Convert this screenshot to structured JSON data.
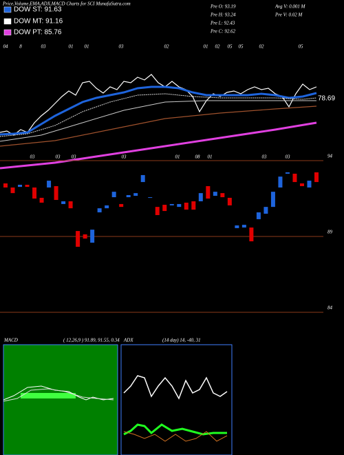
{
  "header": {
    "title": "Price,Volume,EMA,ADX,MACD Charts for SCI MunafaSutra.com"
  },
  "legend": [
    {
      "label": "DOW ST: 91.63",
      "color": "#1e64dc"
    },
    {
      "label": "DOW MT: 91.16",
      "color": "#ffffff"
    },
    {
      "label": "DOW PT: 85.76",
      "color": "#e040e0"
    }
  ],
  "info": [
    "Pre O: 93.19",
    "Pre H: 93.24",
    "Pre L: 92.43",
    "Pre C: 92.62",
    "Avg V: 0.001 M",
    "Pre V: 0.02 M"
  ],
  "ema_panel": {
    "last_label": "78.69",
    "top_dates": [
      "04",
      "8",
      "03",
      "01",
      "01",
      "03",
      "02",
      "01",
      "02",
      "05",
      "05",
      "02",
      "05"
    ],
    "bottom_dates": [
      "03",
      "03",
      "03",
      "03",
      "01",
      "08",
      "01",
      "03",
      "03"
    ]
  },
  "chart_data": {
    "type": "candlestick",
    "open": [
      92.5,
      92.23,
      92.27,
      92.41,
      92.23,
      91.55,
      92.23,
      92.32,
      91.14,
      91.32,
      89.36,
      89.14,
      88.59,
      90.59,
      90.86,
      91.59,
      91.14,
      91.59,
      91.68,
      92.59,
      91.55,
      90.95,
      91.09,
      91.05,
      90.95,
      91.23,
      91.32,
      91.32,
      92.32,
      91.68,
      91.86,
      91.55,
      89.55,
      89.59,
      89.59,
      90.14,
      90.5,
      90.95,
      92.23,
      93.14,
      93.14,
      92.5,
      92.23,
      93.23
    ],
    "close": [
      92.23,
      91.86,
      92.41,
      92.27,
      91.5,
      91.23,
      92.68,
      91.41,
      91.32,
      90.86,
      88.32,
      88.86,
      89.45,
      90.86,
      91.05,
      91.95,
      90.95,
      91.73,
      91.86,
      93.05,
      91.59,
      90.41,
      90.68,
      91.14,
      91.14,
      90.77,
      90.77,
      91.86,
      91.5,
      91.95,
      91.59,
      91.05,
      89.73,
      89.77,
      88.68,
      90.59,
      90.95,
      91.95,
      92.95,
      93.23,
      92.59,
      92.32,
      92.68,
      92.59
    ],
    "up_color": "#1e64dc",
    "down_color": "#e00000",
    "ylim": [
      83.68,
      94.23
    ],
    "yticks": [
      94,
      89,
      84
    ],
    "grid": true
  },
  "macd": {
    "label": "MACD",
    "params": "( 12,26,9 ) 91.89, 91.55, 0.34"
  },
  "adx": {
    "label": "ADX",
    "params": "(14 day) 14, -40, 31"
  }
}
